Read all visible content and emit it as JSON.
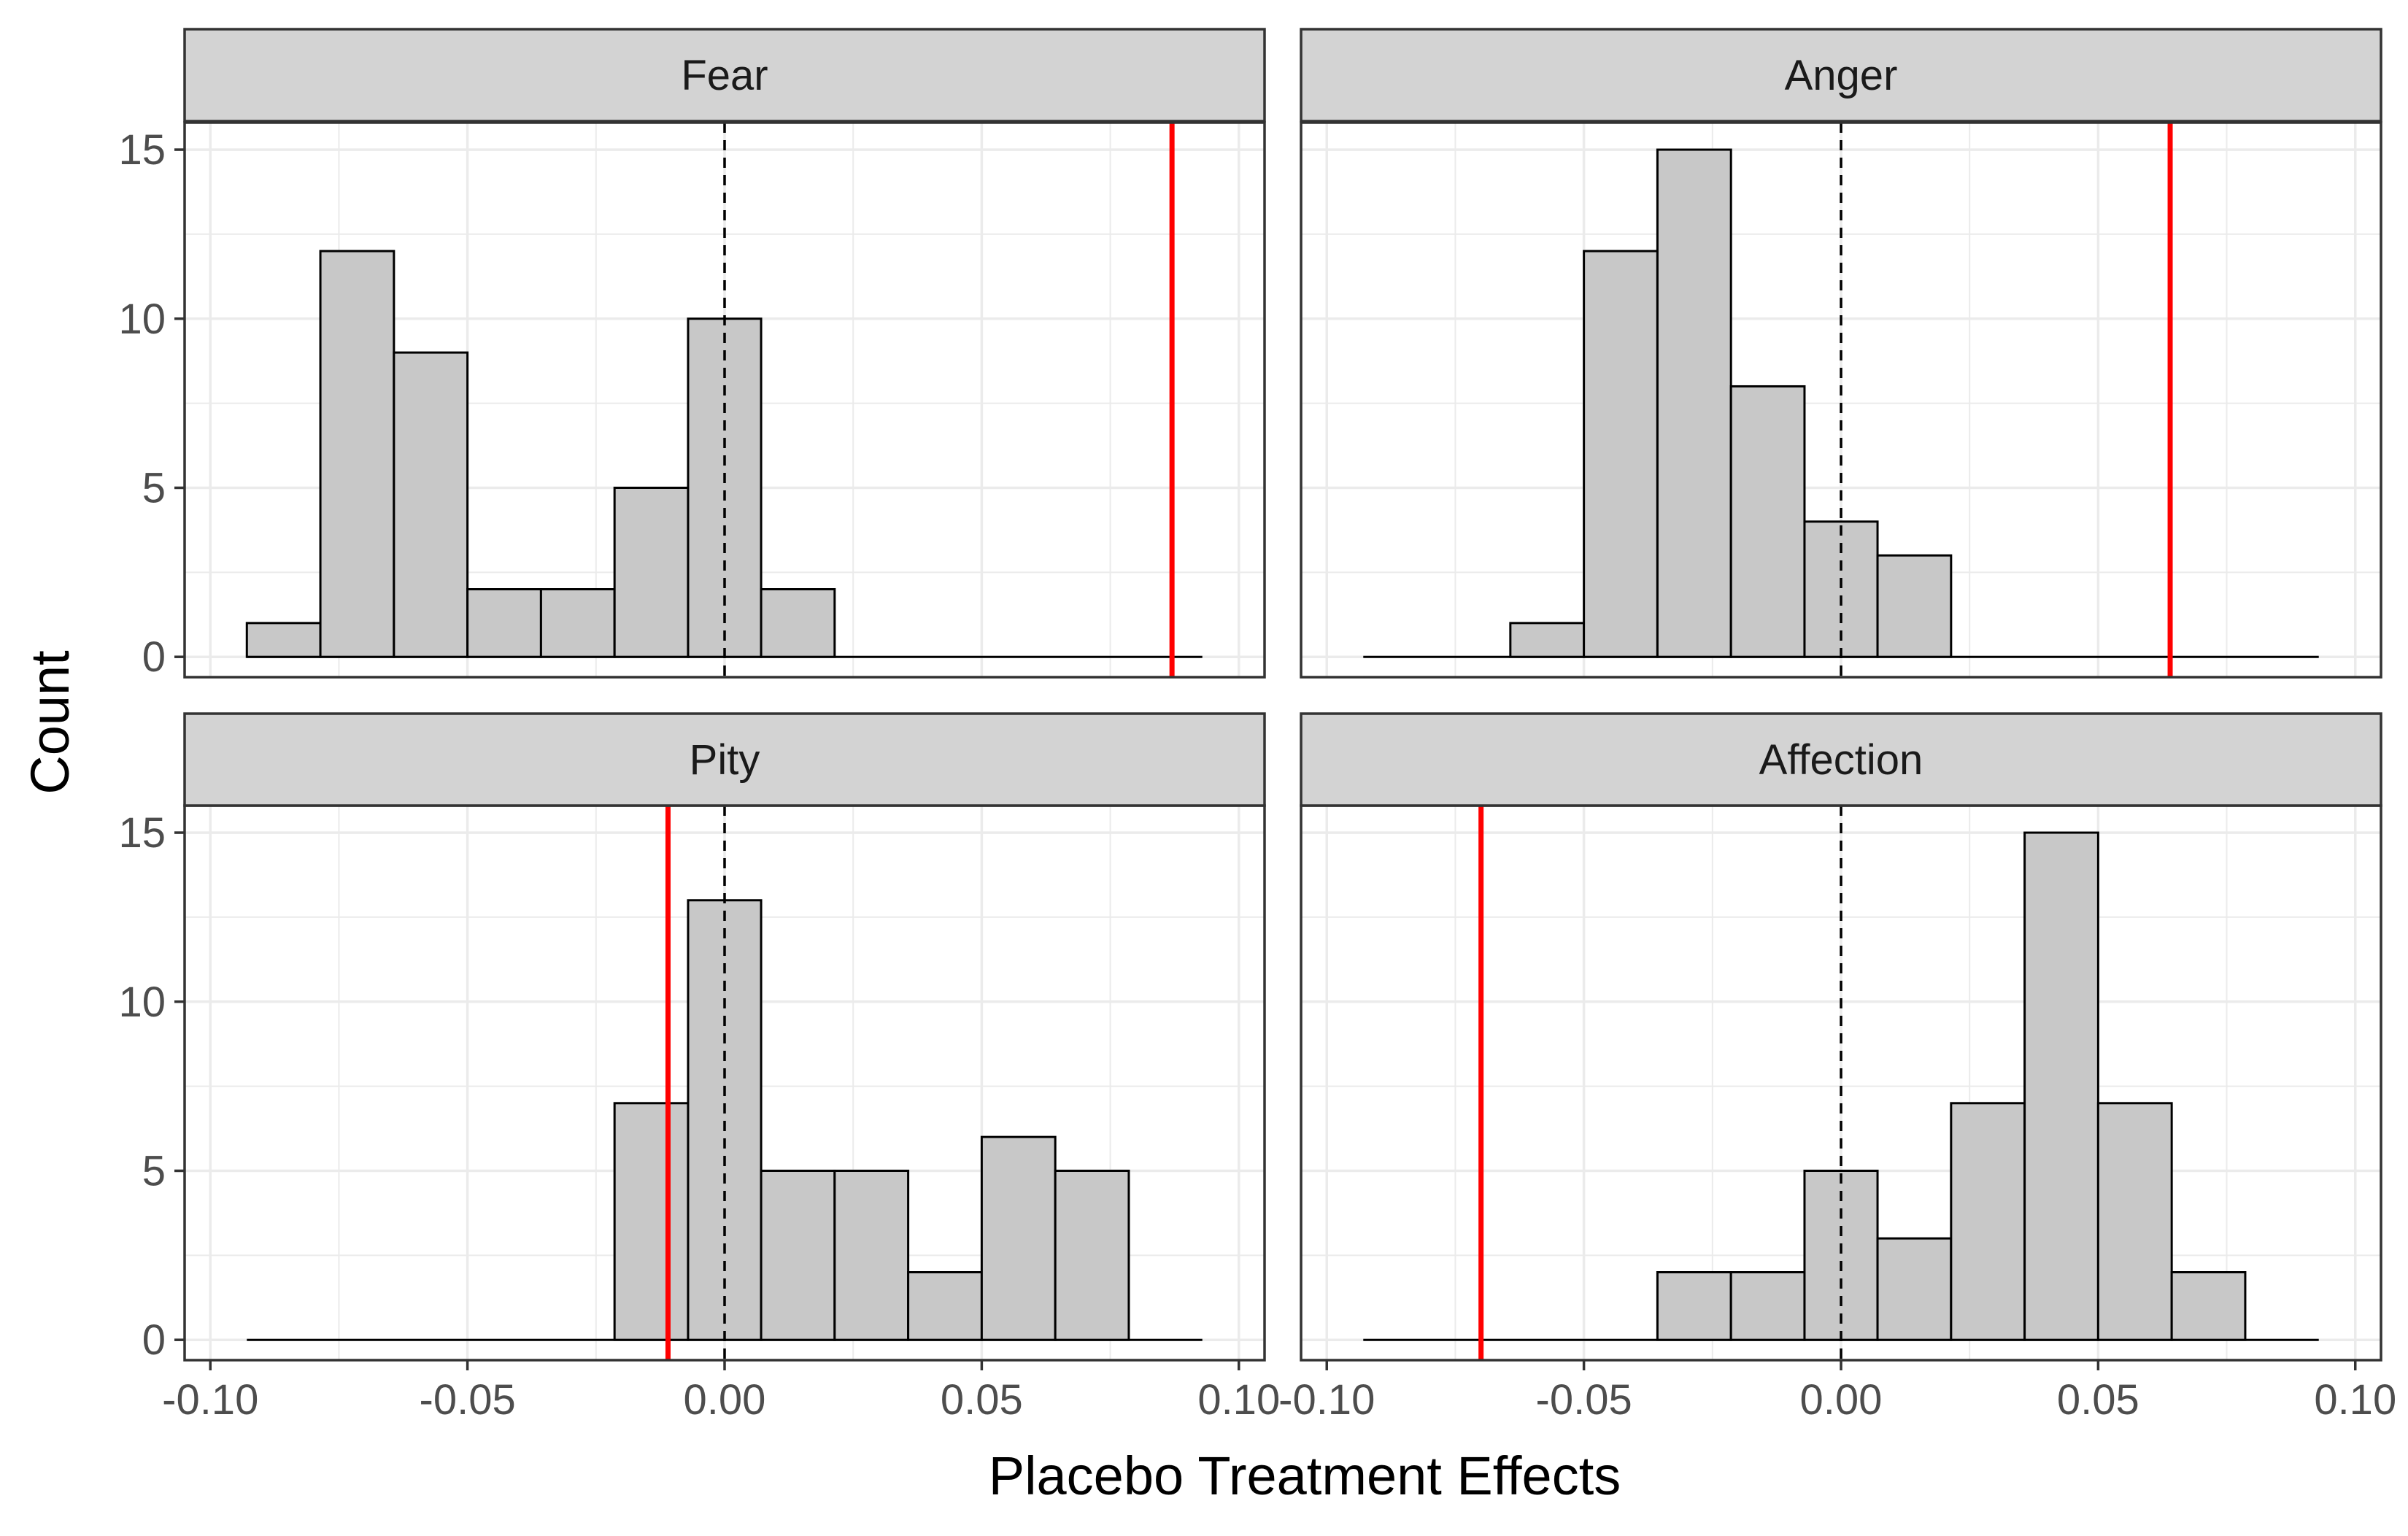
{
  "figure": {
    "xlabel": "Placebo Treatment Effects",
    "ylabel": "Count"
  },
  "chart_data": {
    "type": "bar",
    "chart_kind": "faceted histogram",
    "xlabel": "Placebo Treatment Effects",
    "ylabel": "Count",
    "xlim": [
      -0.105,
      0.105
    ],
    "ylim": [
      -0.6,
      15.8
    ],
    "x_ticks": [
      -0.1,
      -0.05,
      0.0,
      0.05,
      0.1
    ],
    "x_tick_labels": [
      "-0.10",
      "-0.05",
      "0.00",
      "0.05",
      "0.10"
    ],
    "y_ticks": [
      0,
      5,
      10,
      15
    ],
    "y_tick_labels": [
      "0",
      "5",
      "10",
      "15"
    ],
    "bin_width": 0.01429,
    "bin_range": [
      -0.0929,
      0.0929
    ],
    "bin_edges": [
      -0.0929,
      -0.0786,
      -0.0643,
      -0.05,
      -0.0357,
      -0.0214,
      -0.0071,
      0.0071,
      0.0214,
      0.0357,
      0.05,
      0.0643,
      0.0786,
      0.0929
    ],
    "reference_line": {
      "x": 0.0,
      "style": "dashed",
      "color": "#000000"
    },
    "grid": true,
    "colors": {
      "bar_fill": "#c8c8c8",
      "bar_stroke": "#000000",
      "observed_line": "#ff0000",
      "strip_fill": "#d3d3d3",
      "grid": "#ebebeb"
    },
    "panels": [
      {
        "title": "Fear",
        "observed_effect": 0.087,
        "counts": [
          1,
          12,
          9,
          2,
          2,
          5,
          10,
          2,
          0,
          0,
          0,
          0,
          0
        ]
      },
      {
        "title": "Anger",
        "observed_effect": 0.064,
        "counts": [
          0,
          0,
          1,
          12,
          15,
          8,
          4,
          3,
          0,
          0,
          0,
          0,
          0
        ]
      },
      {
        "title": "Pity",
        "observed_effect": -0.011,
        "counts": [
          0,
          0,
          0,
          0,
          0,
          7,
          13,
          5,
          5,
          2,
          6,
          5,
          0
        ]
      },
      {
        "title": "Affection",
        "observed_effect": -0.07,
        "counts": [
          0,
          0,
          0,
          0,
          2,
          2,
          5,
          3,
          7,
          15,
          7,
          2,
          0
        ]
      }
    ]
  }
}
